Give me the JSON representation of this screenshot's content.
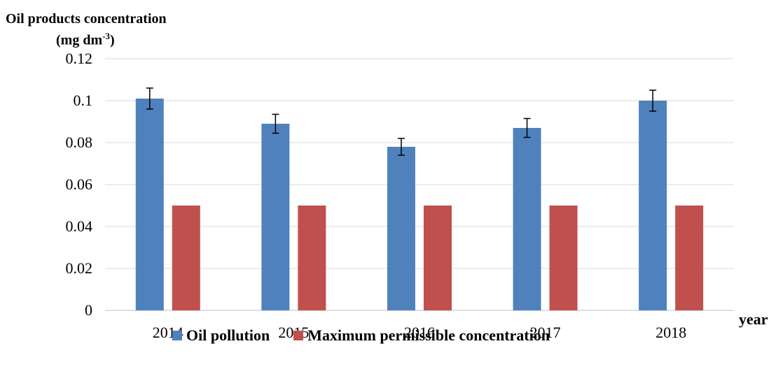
{
  "chart_data": {
    "type": "bar",
    "ylabel_line1": "Oil products concentration",
    "ylabel_unit_main": "(mg dm",
    "ylabel_unit_sup": "-3",
    "ylabel_unit_end": ")",
    "xlabel": "year",
    "categories": [
      "2014",
      "2015",
      "2016",
      "2017",
      "2018"
    ],
    "ylim": [
      0,
      0.12
    ],
    "yticks": [
      0,
      0.02,
      0.04,
      0.06,
      0.08,
      0.1,
      0.12
    ],
    "ytick_labels": [
      "0",
      "0.02",
      "0.04",
      "0.06",
      "0.08",
      "0.1",
      "0.12"
    ],
    "grid": true,
    "legend_position": "bottom",
    "series": [
      {
        "name": "Oil pollution",
        "color": "#4f81bd",
        "values": [
          0.101,
          0.089,
          0.078,
          0.087,
          0.1
        ],
        "error": [
          0.005,
          0.0045,
          0.004,
          0.0045,
          0.005
        ]
      },
      {
        "name": "Maximum permissible concentration",
        "color": "#c0504d",
        "values": [
          0.05,
          0.05,
          0.05,
          0.05,
          0.05
        ]
      }
    ]
  }
}
